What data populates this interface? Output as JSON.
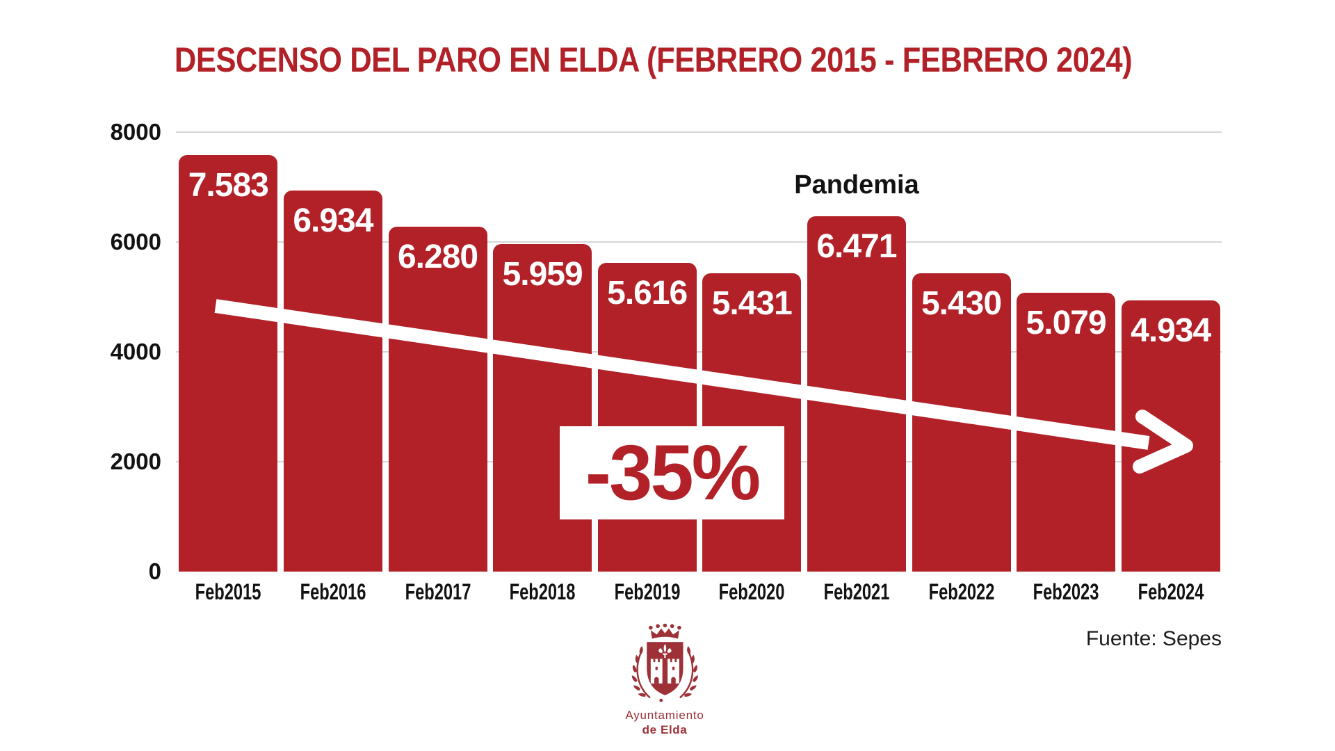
{
  "title": "DESCENSO DEL PARO EN ELDA (FEBRERO 2015 - FEBRERO 2024)",
  "source": "Fuente: Sepes",
  "annotations": {
    "pandemia": "Pandemia",
    "percent": "-35%"
  },
  "logo": {
    "line1": "Ayuntamiento",
    "line2": "de Elda"
  },
  "colors": {
    "chart_red": "#b32128",
    "logo_red": "#9d3137",
    "grid": "#d6d6d6",
    "text_black": "#121212"
  },
  "chart_data": {
    "type": "bar",
    "title": "DESCENSO DEL PARO EN ELDA (FEBRERO 2015 - FEBRERO 2024)",
    "categories": [
      "Feb2015",
      "Feb2016",
      "Feb2017",
      "Feb2018",
      "Feb2019",
      "Feb2020",
      "Feb2021",
      "Feb2022",
      "Feb2023",
      "Feb2024"
    ],
    "values": [
      7583,
      6934,
      6280,
      5959,
      5616,
      5431,
      6471,
      5430,
      5079,
      4934
    ],
    "bar_labels": [
      "7.583",
      "6.934",
      "6.280",
      "5.959",
      "5.616",
      "5.431",
      "6.471",
      "5.430",
      "5.079",
      "4.934"
    ],
    "xlabel": "",
    "ylabel": "",
    "y_ticks": [
      0,
      2000,
      4000,
      6000,
      8000
    ],
    "ylim": [
      0,
      8000
    ],
    "grid": "horizontal",
    "legend": "none",
    "bar_color": "#b32128",
    "annotations": [
      {
        "type": "text",
        "text": "Pandemia",
        "category": "Feb2021"
      },
      {
        "type": "callout-box",
        "text": "-35%"
      },
      {
        "type": "trend-arrow",
        "direction": "down",
        "meaning": "decline from Feb2015 to Feb2024"
      }
    ]
  }
}
